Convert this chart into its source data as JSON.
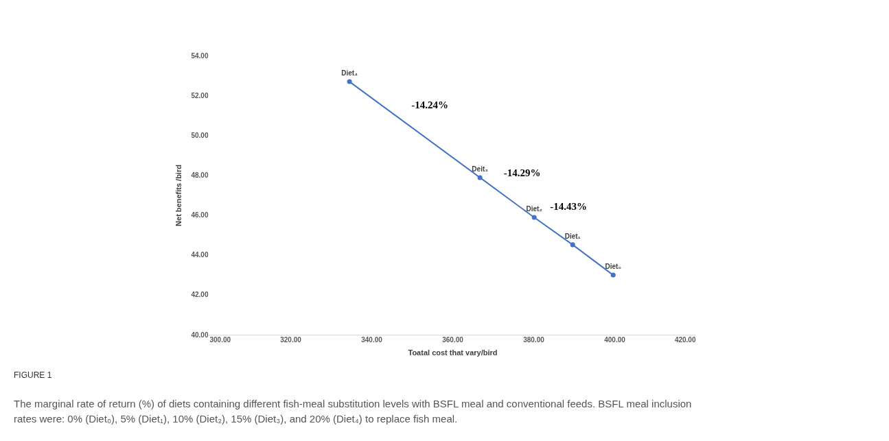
{
  "chart_data": {
    "type": "line",
    "xlabel": "Toatal cost that vary/bird",
    "ylabel": "Net benefits /bird",
    "x": [
      334.6,
      366.8,
      380.2,
      389.7,
      399.7
    ],
    "series": [
      {
        "color": "#4472c4",
        "values": [
          52.69,
          47.88,
          45.88,
          44.51,
          42.99
        ]
      }
    ],
    "marker": "circle",
    "line_style": "solid",
    "grid": false,
    "xlim": [
      300,
      420
    ],
    "ylim": [
      40,
      54
    ],
    "xticks": [
      {
        "value": 300,
        "label": "300.00"
      },
      {
        "value": 320,
        "label": "320.00"
      },
      {
        "value": 340,
        "label": "340.00"
      },
      {
        "value": 360,
        "label": "360.00"
      },
      {
        "value": 380,
        "label": "380.00"
      },
      {
        "value": 400,
        "label": "400.00"
      },
      {
        "value": 420,
        "label": "420.00"
      }
    ],
    "yticks": [
      {
        "value": 40,
        "label": "40.00"
      },
      {
        "value": 42,
        "label": "42.00"
      },
      {
        "value": 44,
        "label": "44.00"
      },
      {
        "value": 46,
        "label": "46.00"
      },
      {
        "value": 48,
        "label": "48.00"
      },
      {
        "value": 50,
        "label": "50.00"
      },
      {
        "value": 52,
        "label": "52.00"
      },
      {
        "value": 54,
        "label": "54.00"
      }
    ],
    "annotations": [
      {
        "text": "Diet₄",
        "x": 334.6,
        "y": 52.69
      },
      {
        "text": "Deit₃",
        "x": 366.8,
        "y": 47.88
      },
      {
        "text": "Diet₂",
        "x": 380.2,
        "y": 45.88
      },
      {
        "text": "Diet₁",
        "x": 389.7,
        "y": 44.51
      },
      {
        "text": "Diet₀",
        "x": 399.7,
        "y": 42.99
      },
      "-14.24%",
      "-14.29%",
      "-14.43%",
      "FIGURE 1",
      "The marginal rate of return (%) of diets containing different fish-meal substitution levels with BSFL meal and conventional feeds. BSFL meal inclusion rates were: 0% (Diet₀), 5% (Diet₁), 10% (Diet₂), 15% (Diet₃), and 20% (Diet₄) to replace fish meal."
    ]
  }
}
